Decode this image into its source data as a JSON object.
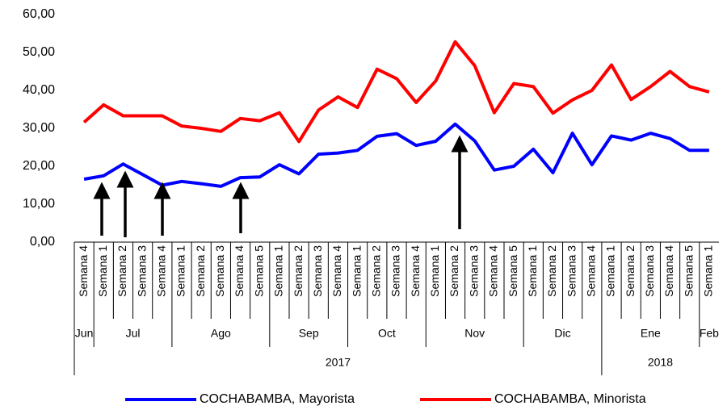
{
  "chart_data": {
    "type": "line",
    "categories": [
      "Semana 4",
      "Semana 1",
      "Semana 2",
      "Semana 3",
      "Semana 4",
      "Semana 1",
      "Semana 2",
      "Semana 3",
      "Semana 4",
      "Semana 5",
      "Semana 1",
      "Semana 2",
      "Semana 3",
      "Semana 4",
      "Semana 1",
      "Semana 2",
      "Semana 3",
      "Semana 4",
      "Semana 1",
      "Semana 2",
      "Semana 3",
      "Semana 4",
      "Semana 5",
      "Semana 1",
      "Semana 2",
      "Semana 3",
      "Semana 4",
      "Semana 1",
      "Semana 2",
      "Semana 3",
      "Semana 4",
      "Semana 5",
      "Semana 1"
    ],
    "months": [
      "Jun",
      "Jul",
      null,
      null,
      null,
      "Ago",
      null,
      null,
      null,
      null,
      "Sep",
      null,
      null,
      null,
      "Oct",
      null,
      null,
      null,
      "Nov",
      null,
      null,
      null,
      null,
      "Dic",
      null,
      null,
      null,
      "Ene",
      null,
      null,
      null,
      null,
      "Feb"
    ],
    "years": [
      "2017",
      null,
      null,
      null,
      null,
      null,
      null,
      null,
      null,
      null,
      null,
      null,
      null,
      null,
      null,
      null,
      null,
      null,
      null,
      null,
      null,
      null,
      null,
      null,
      null,
      null,
      null,
      "2018",
      null,
      null,
      null,
      null,
      null
    ],
    "series": [
      {
        "name": "COCHABAMBA, Mayorista",
        "color": "#0000ff",
        "values": [
          16.6,
          17.5,
          20.6,
          17.8,
          15.0,
          16.0,
          15.4,
          14.7,
          17.0,
          17.2,
          20.4,
          18.0,
          23.2,
          23.5,
          24.2,
          27.9,
          28.6,
          25.5,
          26.6,
          31.1,
          26.7,
          19.0,
          20.0,
          24.5,
          18.3,
          28.7,
          20.4,
          28.0,
          26.9,
          28.7,
          27.3,
          24.2,
          24.2
        ]
      },
      {
        "name": "COCHABAMBA, Minorista",
        "color": "#ff0000",
        "values": [
          31.6,
          36.2,
          33.3,
          33.3,
          33.3,
          30.6,
          30.0,
          29.2,
          32.6,
          32.0,
          34.1,
          26.5,
          34.8,
          38.3,
          35.5,
          45.6,
          43.1,
          36.8,
          42.5,
          52.8,
          46.5,
          34.1,
          41.8,
          41.0,
          34.0,
          37.5,
          40.0,
          46.7,
          37.6,
          41.0,
          45.0,
          41.0,
          39.6
        ]
      }
    ],
    "ylim": [
      0,
      60
    ],
    "yticks": [
      {
        "value": 0,
        "label": "0,00"
      },
      {
        "value": 10,
        "label": "10,00"
      },
      {
        "value": 20,
        "label": "20,00"
      },
      {
        "value": 30,
        "label": "30,00"
      },
      {
        "value": 40,
        "label": "40,00"
      },
      {
        "value": 50,
        "label": "50,00"
      },
      {
        "value": 60,
        "label": "60,00"
      }
    ],
    "grid": false
  }
}
